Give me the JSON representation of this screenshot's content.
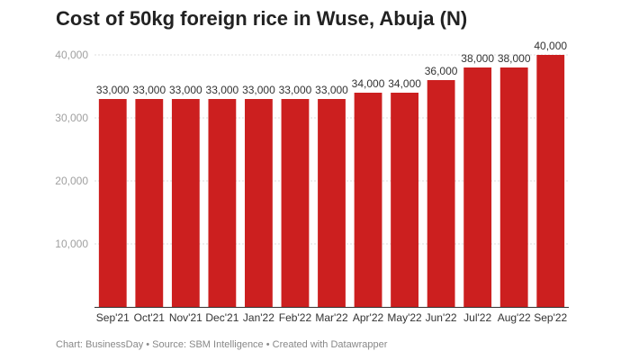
{
  "page": {
    "title": "Cost of 50kg foreign rice in Wuse, Abuja (N)",
    "footer": "Chart: BusinessDay • Source: SBM Intelligence • Created with Datawrapper"
  },
  "chart_data": {
    "type": "bar",
    "title": "Cost of 50kg foreign rice in Wuse, Abuja (N)",
    "xlabel": "",
    "ylabel": "",
    "categories": [
      "Sep'21",
      "Oct'21",
      "Nov'21",
      "Dec'21",
      "Jan'22",
      "Feb'22",
      "Mar'22",
      "Apr'22",
      "May'22",
      "Jun'22",
      "Jul'22",
      "Aug'22",
      "Sep'22"
    ],
    "values": [
      33000,
      33000,
      33000,
      33000,
      33000,
      33000,
      33000,
      34000,
      34000,
      36000,
      38000,
      38000,
      40000
    ],
    "data_labels": [
      "33,000",
      "33,000",
      "33,000",
      "33,000",
      "33,000",
      "33,000",
      "33,000",
      "34,000",
      "34,000",
      "36,000",
      "38,000",
      "38,000",
      "40,000"
    ],
    "ylim": [
      0,
      40000
    ],
    "yticks": [
      10000,
      20000,
      30000,
      40000
    ],
    "ytick_labels": [
      "10,000",
      "20,000",
      "30,000",
      "40,000"
    ],
    "grid": true,
    "bar_color": "#cc1f1f"
  }
}
